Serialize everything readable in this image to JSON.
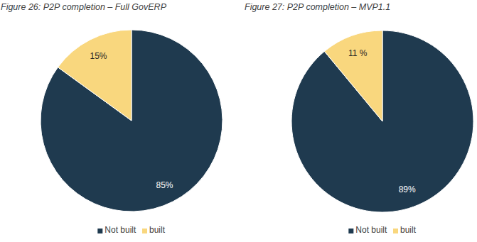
{
  "chart_data": [
    {
      "type": "pie",
      "title": "Figure 26: P2P completion – Full GovERP",
      "categories": [
        "Not built",
        "built"
      ],
      "values": [
        85,
        15
      ],
      "value_labels": [
        "85%",
        "15%"
      ],
      "colors": [
        "#1f3a4f",
        "#f9d77e"
      ],
      "data_labels": true,
      "legend": "bottom"
    },
    {
      "type": "pie",
      "title": "Figure 27: P2P completion – MVP1.1",
      "categories": [
        "Not built",
        "built"
      ],
      "values": [
        89,
        11
      ],
      "value_labels": [
        "89%",
        "11 %"
      ],
      "colors": [
        "#1f3a4f",
        "#f9d77e"
      ],
      "data_labels": true,
      "legend": "bottom"
    }
  ]
}
